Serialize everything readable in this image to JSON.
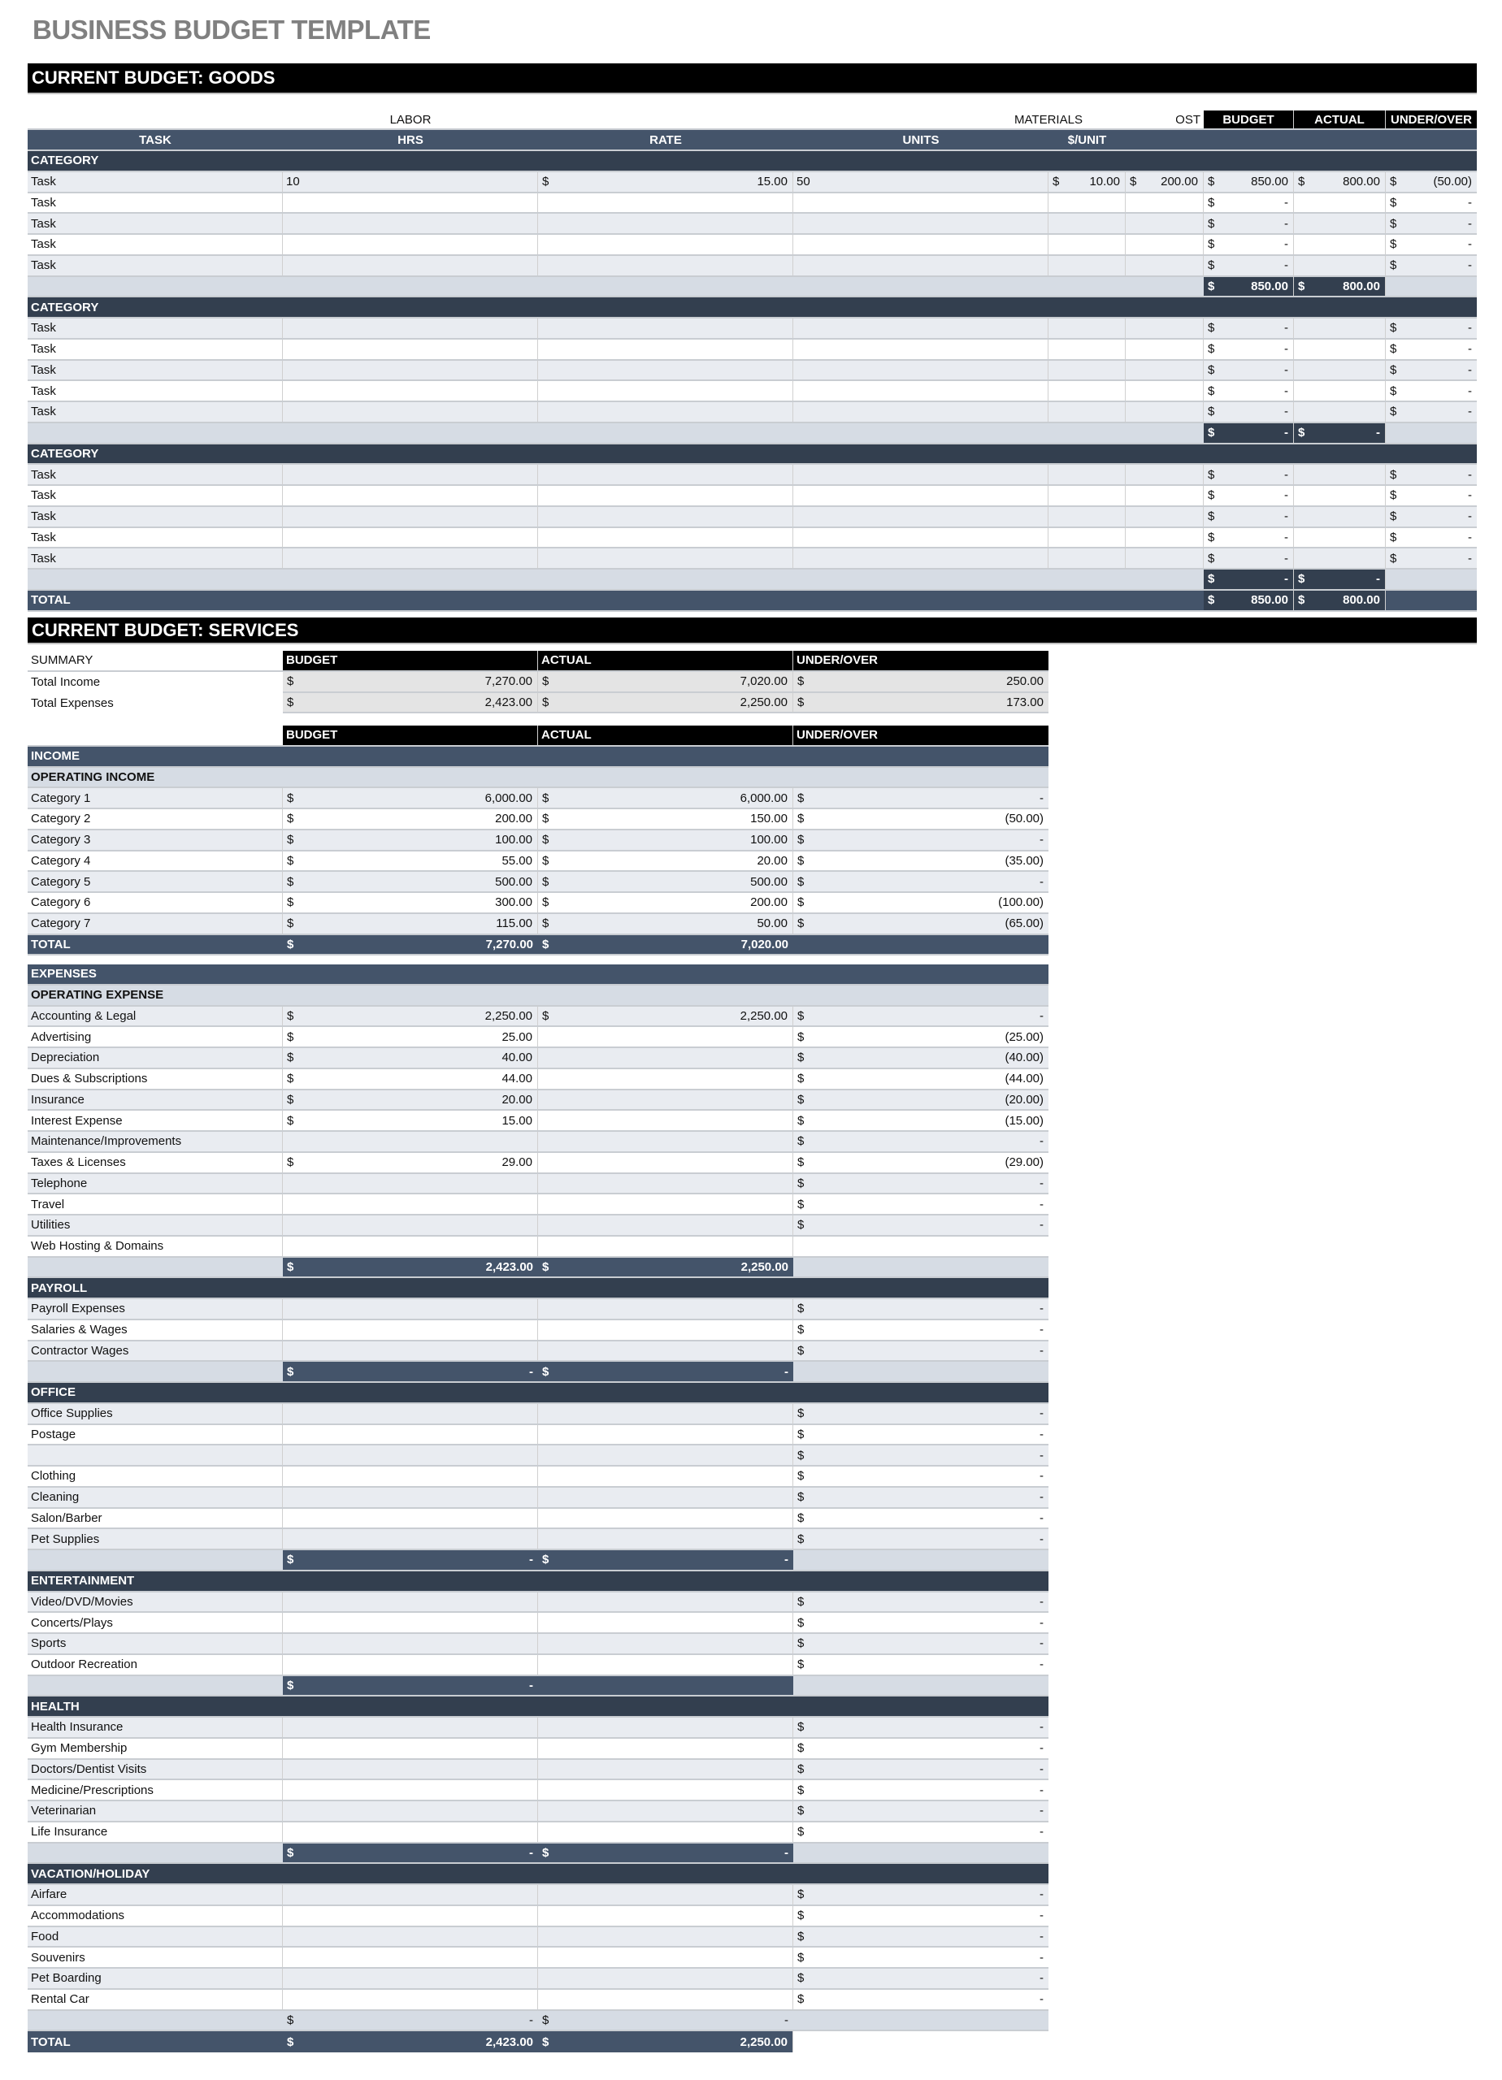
{
  "title": "BUSINESS BUDGET TEMPLATE",
  "currency_symbol": "$",
  "colors": {
    "header_black": "#000000",
    "header_blue": "#44546a",
    "category_dark": "#333f4f",
    "subtotal_light": "#d6dce4",
    "row_alt": "#e9ecf1",
    "title_gray": "#808080"
  },
  "goods": {
    "title": "CURRENT BUDGET: GOODS",
    "group_headers": {
      "labor": "LABOR",
      "materials": "MATERIALS",
      "fixed_cost": "FIXED COST"
    },
    "summary_headers": [
      "BUDGET",
      "ACTUAL",
      "UNDER/OVER"
    ],
    "columns": [
      "TASK",
      "HRS",
      "RATE",
      "UNITS",
      "$/UNIT"
    ],
    "categories": [
      {
        "label": "CATEGORY",
        "rows": [
          {
            "task": "Task",
            "hrs": "10",
            "rate": "15.00",
            "units": "50",
            "per_unit": "10.00",
            "fixed": "200.00",
            "budget": "850.00",
            "actual": "800.00",
            "under_over": "(50.00)"
          },
          {
            "task": "Task",
            "hrs": "",
            "rate": null,
            "units": "",
            "per_unit": null,
            "fixed": null,
            "budget": "-",
            "actual": null,
            "under_over": "-"
          },
          {
            "task": "Task",
            "hrs": "",
            "rate": null,
            "units": "",
            "per_unit": null,
            "fixed": null,
            "budget": "-",
            "actual": null,
            "under_over": "-"
          },
          {
            "task": "Task",
            "hrs": "",
            "rate": null,
            "units": "",
            "per_unit": null,
            "fixed": null,
            "budget": "-",
            "actual": null,
            "under_over": "-"
          },
          {
            "task": "Task",
            "hrs": "",
            "rate": null,
            "units": "",
            "per_unit": null,
            "fixed": null,
            "budget": "-",
            "actual": null,
            "under_over": "-"
          }
        ],
        "subtotal": {
          "budget": "850.00",
          "actual": "800.00"
        }
      },
      {
        "label": "CATEGORY",
        "rows": [
          {
            "task": "Task",
            "hrs": "",
            "rate": null,
            "units": "",
            "per_unit": null,
            "fixed": null,
            "budget": "-",
            "actual": null,
            "under_over": "-"
          },
          {
            "task": "Task",
            "hrs": "",
            "rate": null,
            "units": "",
            "per_unit": null,
            "fixed": null,
            "budget": "-",
            "actual": null,
            "under_over": "-"
          },
          {
            "task": "Task",
            "hrs": "",
            "rate": null,
            "units": "",
            "per_unit": null,
            "fixed": null,
            "budget": "-",
            "actual": null,
            "under_over": "-"
          },
          {
            "task": "Task",
            "hrs": "",
            "rate": null,
            "units": "",
            "per_unit": null,
            "fixed": null,
            "budget": "-",
            "actual": null,
            "under_over": "-"
          },
          {
            "task": "Task",
            "hrs": "",
            "rate": null,
            "units": "",
            "per_unit": null,
            "fixed": null,
            "budget": "-",
            "actual": null,
            "under_over": "-"
          }
        ],
        "subtotal": {
          "budget": "-",
          "actual": "-"
        }
      },
      {
        "label": "CATEGORY",
        "rows": [
          {
            "task": "Task",
            "hrs": "",
            "rate": null,
            "units": "",
            "per_unit": null,
            "fixed": null,
            "budget": "-",
            "actual": null,
            "under_over": "-"
          },
          {
            "task": "Task",
            "hrs": "",
            "rate": null,
            "units": "",
            "per_unit": null,
            "fixed": null,
            "budget": "-",
            "actual": null,
            "under_over": "-"
          },
          {
            "task": "Task",
            "hrs": "",
            "rate": null,
            "units": "",
            "per_unit": null,
            "fixed": null,
            "budget": "-",
            "actual": null,
            "under_over": "-"
          },
          {
            "task": "Task",
            "hrs": "",
            "rate": null,
            "units": "",
            "per_unit": null,
            "fixed": null,
            "budget": "-",
            "actual": null,
            "under_over": "-"
          },
          {
            "task": "Task",
            "hrs": "",
            "rate": null,
            "units": "",
            "per_unit": null,
            "fixed": null,
            "budget": "-",
            "actual": null,
            "under_over": "-"
          }
        ],
        "subtotal": {
          "budget": "-",
          "actual": "-"
        }
      }
    ],
    "total": {
      "label": "TOTAL",
      "budget": "850.00",
      "actual": "800.00"
    }
  },
  "services": {
    "title": "CURRENT BUDGET: SERVICES",
    "headers": [
      "BUDGET",
      "ACTUAL",
      "UNDER/OVER"
    ],
    "summary": {
      "label": "SUMMARY",
      "rows": [
        {
          "label": "Total Income",
          "budget": "7,270.00",
          "actual": "7,020.00",
          "under_over": "250.00"
        },
        {
          "label": "Total Expenses",
          "budget": "2,423.00",
          "actual": "2,250.00",
          "under_over": "173.00"
        }
      ]
    },
    "income": {
      "label": "INCOME",
      "sub_label": "OPERATING INCOME",
      "items": [
        {
          "label": "Category 1",
          "budget": "6,000.00",
          "actual": "6,000.00",
          "under_over": "-"
        },
        {
          "label": "Category 2",
          "budget": "200.00",
          "actual": "150.00",
          "under_over": "(50.00)"
        },
        {
          "label": "Category 3",
          "budget": "100.00",
          "actual": "100.00",
          "under_over": "-"
        },
        {
          "label": "Category 4",
          "budget": "55.00",
          "actual": "20.00",
          "under_over": "(35.00)"
        },
        {
          "label": "Category 5",
          "budget": "500.00",
          "actual": "500.00",
          "under_over": "-"
        },
        {
          "label": "Category 6",
          "budget": "300.00",
          "actual": "200.00",
          "under_over": "(100.00)"
        },
        {
          "label": "Category 7",
          "budget": "115.00",
          "actual": "50.00",
          "under_over": "(65.00)"
        }
      ],
      "total": {
        "label": "TOTAL",
        "budget": "7,270.00",
        "actual": "7,020.00"
      }
    },
    "expenses": {
      "label": "EXPENSES",
      "groups": [
        {
          "label": "OPERATING EXPENSE",
          "header_style": "light",
          "items": [
            {
              "label": "Accounting & Legal",
              "budget": "2,250.00",
              "actual": "2,250.00",
              "under_over": "-"
            },
            {
              "label": "Advertising",
              "budget": "25.00",
              "actual": null,
              "under_over": "(25.00)"
            },
            {
              "label": "Depreciation",
              "budget": "40.00",
              "actual": null,
              "under_over": "(40.00)"
            },
            {
              "label": "Dues & Subscriptions",
              "budget": "44.00",
              "actual": null,
              "under_over": "(44.00)"
            },
            {
              "label": "Insurance",
              "budget": "20.00",
              "actual": null,
              "under_over": "(20.00)"
            },
            {
              "label": "Interest Expense",
              "budget": "15.00",
              "actual": null,
              "under_over": "(15.00)"
            },
            {
              "label": "Maintenance/Improvements",
              "budget": null,
              "actual": null,
              "under_over": "-"
            },
            {
              "label": "Taxes & Licenses",
              "budget": "29.00",
              "actual": null,
              "under_over": "(29.00)"
            },
            {
              "label": "Telephone",
              "budget": null,
              "actual": null,
              "under_over": "-"
            },
            {
              "label": "Travel",
              "budget": null,
              "actual": null,
              "under_over": "-"
            },
            {
              "label": "Utilities",
              "budget": null,
              "actual": null,
              "under_over": "-"
            },
            {
              "label": "Web Hosting & Domains",
              "budget": null,
              "actual": null,
              "under_over": null
            }
          ],
          "subtotal": {
            "budget": "2,423.00",
            "actual": "2,250.00",
            "style": "dark"
          }
        },
        {
          "label": "PAYROLL",
          "header_style": "dark",
          "items": [
            {
              "label": "Payroll Expenses",
              "budget": null,
              "actual": null,
              "under_over": "-"
            },
            {
              "label": "Salaries & Wages",
              "budget": null,
              "actual": null,
              "under_over": "-"
            },
            {
              "label": "Contractor Wages",
              "budget": null,
              "actual": null,
              "under_over": "-"
            }
          ],
          "subtotal": {
            "budget": "-",
            "actual": "-",
            "style": "dark"
          }
        },
        {
          "label": "OFFICE",
          "header_style": "dark",
          "items": [
            {
              "label": "Office Supplies",
              "budget": null,
              "actual": null,
              "under_over": "-"
            },
            {
              "label": "Postage",
              "budget": null,
              "actual": null,
              "under_over": "-"
            },
            {
              "label": "",
              "budget": null,
              "actual": null,
              "under_over": "-"
            },
            {
              "label": "Clothing",
              "budget": null,
              "actual": null,
              "under_over": "-"
            },
            {
              "label": "Cleaning",
              "budget": null,
              "actual": null,
              "under_over": "-"
            },
            {
              "label": "Salon/Barber",
              "budget": null,
              "actual": null,
              "under_over": "-"
            },
            {
              "label": "Pet Supplies",
              "budget": null,
              "actual": null,
              "under_over": "-"
            }
          ],
          "subtotal": {
            "budget": "-",
            "actual": "-",
            "style": "dark"
          }
        },
        {
          "label": "ENTERTAINMENT",
          "header_style": "dark",
          "items": [
            {
              "label": "Video/DVD/Movies",
              "budget": null,
              "actual": null,
              "under_over": "-"
            },
            {
              "label": "Concerts/Plays",
              "budget": null,
              "actual": null,
              "under_over": "-"
            },
            {
              "label": "Sports",
              "budget": null,
              "actual": null,
              "under_over": "-"
            },
            {
              "label": "Outdoor Recreation",
              "budget": null,
              "actual": null,
              "under_over": "-"
            }
          ],
          "subtotal": {
            "budget": "-",
            "actual": null,
            "style": "dark"
          }
        },
        {
          "label": "HEALTH",
          "header_style": "dark",
          "items": [
            {
              "label": "Health Insurance",
              "budget": null,
              "actual": null,
              "under_over": "-"
            },
            {
              "label": "Gym Membership",
              "budget": null,
              "actual": null,
              "under_over": "-"
            },
            {
              "label": "Doctors/Dentist Visits",
              "budget": null,
              "actual": null,
              "under_over": "-"
            },
            {
              "label": "Medicine/Prescriptions",
              "budget": null,
              "actual": null,
              "under_over": "-"
            },
            {
              "label": "Veterinarian",
              "budget": null,
              "actual": null,
              "under_over": "-"
            },
            {
              "label": "Life Insurance",
              "budget": null,
              "actual": null,
              "under_over": "-"
            }
          ],
          "subtotal": {
            "budget": "-",
            "actual": "-",
            "style": "dark"
          }
        },
        {
          "label": "VACATION/HOLIDAY",
          "header_style": "dark",
          "items": [
            {
              "label": "Airfare",
              "budget": null,
              "actual": null,
              "under_over": "-"
            },
            {
              "label": "Accommodations",
              "budget": null,
              "actual": null,
              "under_over": "-"
            },
            {
              "label": "Food",
              "budget": null,
              "actual": null,
              "under_over": "-"
            },
            {
              "label": "Souvenirs",
              "budget": null,
              "actual": null,
              "under_over": "-"
            },
            {
              "label": "Pet Boarding",
              "budget": null,
              "actual": null,
              "under_over": "-"
            },
            {
              "label": "Rental Car",
              "budget": null,
              "actual": null,
              "under_over": "-"
            }
          ],
          "subtotal": {
            "budget": "-",
            "actual": "-",
            "style": "light"
          }
        }
      ],
      "total": {
        "label": "TOTAL",
        "budget": "2,423.00",
        "actual": "2,250.00"
      }
    }
  }
}
